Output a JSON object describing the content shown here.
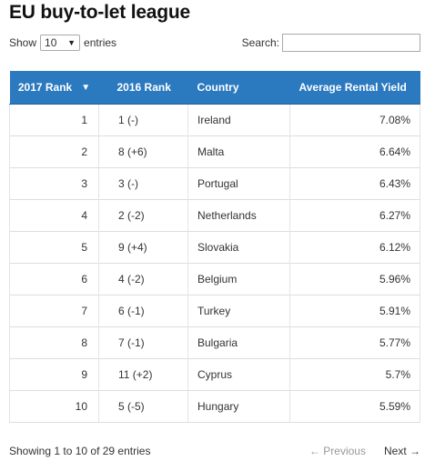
{
  "title": "EU buy-to-let league",
  "length": {
    "show_label": "Show",
    "selected": "10",
    "entries_label": "entries"
  },
  "search": {
    "label": "Search:",
    "value": ""
  },
  "table": {
    "headers": [
      "2017 Rank",
      "2016 Rank",
      "Country",
      "Average Rental Yield"
    ],
    "sort_indicator": "▼",
    "rows": [
      {
        "rank2017": "1",
        "rank2016": "1 (-)",
        "country": "Ireland",
        "yield": "7.08%"
      },
      {
        "rank2017": "2",
        "rank2016": "8 (+6)",
        "country": "Malta",
        "yield": "6.64%"
      },
      {
        "rank2017": "3",
        "rank2016": "3 (-)",
        "country": "Portugal",
        "yield": "6.43%"
      },
      {
        "rank2017": "4",
        "rank2016": "2 (-2)",
        "country": "Netherlands",
        "yield": "6.27%"
      },
      {
        "rank2017": "5",
        "rank2016": "9 (+4)",
        "country": "Slovakia",
        "yield": "6.12%"
      },
      {
        "rank2017": "6",
        "rank2016": "4 (-2)",
        "country": "Belgium",
        "yield": "5.96%"
      },
      {
        "rank2017": "7",
        "rank2016": "6 (-1)",
        "country": "Turkey",
        "yield": "5.91%"
      },
      {
        "rank2017": "8",
        "rank2016": "7 (-1)",
        "country": "Bulgaria",
        "yield": "5.77%"
      },
      {
        "rank2017": "9",
        "rank2016": "11 (+2)",
        "country": "Cyprus",
        "yield": "5.7%"
      },
      {
        "rank2017": "10",
        "rank2016": "5 (-5)",
        "country": "Hungary",
        "yield": "5.59%"
      }
    ]
  },
  "footer": {
    "info": "Showing 1 to 10 of 29 entries",
    "previous": "← Previous",
    "next": "Next →"
  },
  "colors": {
    "header_bg": "#2b79bf",
    "header_text": "#ffffff",
    "disabled_link": "#999999"
  }
}
